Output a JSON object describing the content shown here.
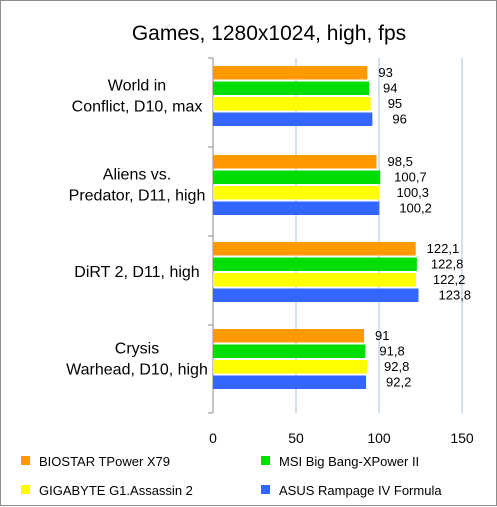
{
  "chart_data": {
    "type": "bar",
    "orientation": "horizontal",
    "title": "Games, 1280x1024, high, fps",
    "categories": [
      [
        "World in",
        "Conflict, D10, max"
      ],
      [
        "Aliens vs.",
        "Predator, D11, high"
      ],
      [
        "DiRT 2, D11, high"
      ],
      [
        "Crysis",
        "Warhead, D10, high"
      ]
    ],
    "series": [
      {
        "name": "BIOSTAR TPower X79",
        "color": "#ff9900",
        "values": [
          93,
          98.5,
          122.1,
          91
        ],
        "labels": [
          "93",
          "98,5",
          "122,1",
          "91"
        ]
      },
      {
        "name": "MSI Big Bang-XPower II",
        "color": "#00dd00",
        "values": [
          94,
          100.7,
          122.8,
          91.8
        ],
        "labels": [
          "94",
          "100,7",
          "122,8",
          "91,8"
        ]
      },
      {
        "name": "GIGABYTE G1.Assassin 2",
        "color": "#ffff00",
        "values": [
          95,
          100.3,
          122.2,
          92.8
        ],
        "labels": [
          "95",
          "100,3",
          "122,2",
          "92,8"
        ]
      },
      {
        "name": "ASUS Rampage IV Formula",
        "color": "#3366ff",
        "values": [
          96,
          100.2,
          123.8,
          92.2
        ],
        "labels": [
          "96",
          "100,2",
          "123,8",
          "92,2"
        ]
      }
    ],
    "xlim": [
      0,
      150
    ],
    "xticks": [
      "0",
      "50",
      "100",
      "150"
    ],
    "grid": true,
    "legend": "bottom"
  }
}
